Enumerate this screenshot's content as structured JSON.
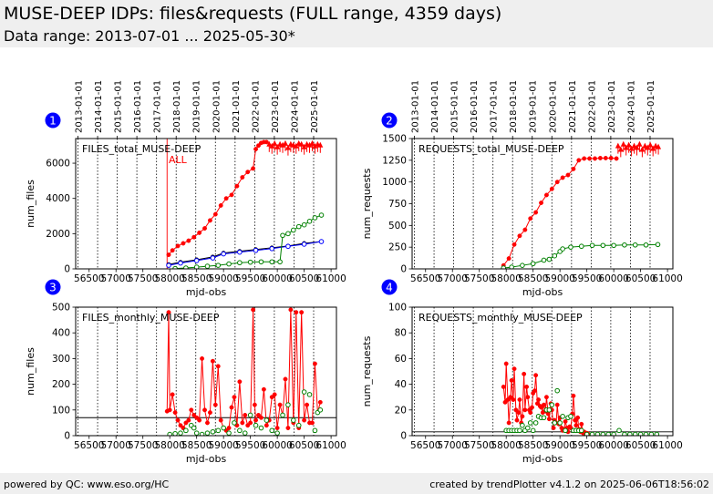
{
  "page": {
    "title": "MUSE-DEEP IDPs: files&requests (FULL range, 4359 days)",
    "subtitle": "Data range: 2013-07-01 ... 2025-05-30*",
    "footer_left": "powered by QC: www.eso.org/HC",
    "footer_right": "created by trendPlotter v4.1.2 on 2025-06-06T18:56:02"
  },
  "colors": {
    "red": "#ff0000",
    "green": "#008000",
    "blue": "#0000ff",
    "black": "#000000",
    "badge": "#0000ff"
  },
  "date_axis": {
    "labels": [
      "2013-01-01",
      "2014-01-01",
      "2015-01-01",
      "2016-01-01",
      "2017-01-01",
      "2018-01-01",
      "2019-01-01",
      "2020-01-01",
      "2021-01-01",
      "2022-01-01",
      "2023-01-01",
      "2024-01-01",
      "2025-01-01"
    ],
    "mjd": [
      56293,
      56658,
      57023,
      57388,
      57754,
      58119,
      58484,
      58849,
      59215,
      59580,
      59945,
      60310,
      60676
    ]
  },
  "chart_data": [
    {
      "id": 1,
      "type": "scatter",
      "title": "FILES_total_MUSE-DEEP",
      "annotation": "ALL",
      "xlabel": "mjd-obs",
      "ylabel": "num_files",
      "xlim": [
        56250,
        61100
      ],
      "ylim": [
        0,
        7400
      ],
      "xticks": [
        56500,
        57000,
        57500,
        58000,
        58500,
        59000,
        59500,
        60000,
        60500,
        61000
      ],
      "yticks": [
        0,
        2000,
        4000,
        6000
      ],
      "vline_red": 57950,
      "series": [
        {
          "color": "red",
          "marker": "filled",
          "line": true,
          "x": [
            57980,
            58050,
            58150,
            58250,
            58350,
            58450,
            58550,
            58650,
            58750,
            58850,
            58950,
            59050,
            59150,
            59250,
            59350,
            59450,
            59550,
            59600,
            59650,
            59700,
            59750,
            59800
          ],
          "y": [
            800,
            1050,
            1300,
            1450,
            1600,
            1800,
            2050,
            2300,
            2750,
            3100,
            3600,
            4000,
            4200,
            4700,
            5200,
            5500,
            5700,
            6800,
            7000,
            7150,
            7200,
            7200
          ]
        },
        {
          "color": "red",
          "marker": "triangle",
          "line": false,
          "x": [
            59850,
            59900,
            59950,
            60000,
            60050,
            60100,
            60150,
            60200,
            60250,
            60300,
            60350,
            60400,
            60450,
            60500,
            60550,
            60600,
            60650,
            60700,
            60750,
            60800
          ],
          "y": [
            7100,
            7000,
            7150,
            6950,
            7100,
            7050,
            7150,
            6900,
            7100,
            7050,
            7000,
            7150,
            7100,
            6950,
            7100,
            7050,
            7150,
            7000,
            7100,
            7050
          ]
        },
        {
          "color": "black",
          "marker": "filled",
          "line": true,
          "x": [
            57980,
            58200,
            58500,
            58800,
            59000,
            59300,
            59600,
            59900,
            60200,
            60500,
            60820
          ],
          "y": [
            250,
            380,
            520,
            680,
            900,
            1000,
            1100,
            1200,
            1300,
            1450,
            1550
          ]
        },
        {
          "color": "blue",
          "marker": "open",
          "line": true,
          "x": [
            57980,
            58200,
            58500,
            58800,
            59000,
            59300,
            59600,
            59900,
            60200,
            60500,
            60820
          ],
          "y": [
            200,
            330,
            470,
            620,
            850,
            950,
            1050,
            1150,
            1280,
            1400,
            1550
          ]
        },
        {
          "color": "green",
          "marker": "open",
          "line": true,
          "x": [
            58100,
            58300,
            58500,
            58700,
            58900,
            59100,
            59300,
            59500,
            59700,
            59900,
            60050,
            60100,
            60200,
            60300,
            60400,
            60500,
            60600,
            60700,
            60820
          ],
          "y": [
            20,
            50,
            100,
            150,
            200,
            280,
            350,
            380,
            400,
            400,
            400,
            1900,
            2000,
            2200,
            2400,
            2500,
            2700,
            2900,
            3050
          ]
        }
      ]
    },
    {
      "id": 2,
      "type": "scatter",
      "title": "REQUESTS_total_MUSE-DEEP",
      "annotation": "",
      "xlabel": "mjd-obs",
      "ylabel": "num_requests",
      "xlim": [
        56250,
        61100
      ],
      "ylim": [
        0,
        1500
      ],
      "xticks": [
        56500,
        57000,
        57500,
        58000,
        58500,
        59000,
        59500,
        60000,
        60500,
        61000
      ],
      "yticks": [
        0,
        250,
        500,
        750,
        1000,
        1250,
        1500
      ],
      "series": [
        {
          "color": "red",
          "marker": "filled",
          "line": true,
          "x": [
            57950,
            58050,
            58150,
            58250,
            58350,
            58450,
            58550,
            58650,
            58750,
            58850,
            58950,
            59050,
            59150,
            59250,
            59350,
            59450,
            59550,
            59650,
            59750,
            59850,
            59950,
            60050
          ],
          "y": [
            40,
            120,
            280,
            380,
            450,
            580,
            650,
            760,
            850,
            920,
            1000,
            1050,
            1080,
            1150,
            1250,
            1270,
            1270,
            1270,
            1275,
            1275,
            1275,
            1270
          ]
        },
        {
          "color": "red",
          "marker": "triangle",
          "line": false,
          "x": [
            60080,
            60130,
            60180,
            60230,
            60280,
            60330,
            60380,
            60430,
            60480,
            60530,
            60580,
            60630,
            60680,
            60730,
            60780,
            60830
          ],
          "y": [
            1420,
            1380,
            1440,
            1400,
            1430,
            1390,
            1420,
            1400,
            1440,
            1380,
            1420,
            1400,
            1430,
            1390,
            1420,
            1410
          ]
        },
        {
          "color": "green",
          "marker": "open",
          "line": true,
          "x": [
            57950,
            58100,
            58300,
            58500,
            58700,
            58800,
            58900,
            59000,
            59050,
            59200,
            59400,
            59600,
            59800,
            60000,
            60200,
            60400,
            60600,
            60820
          ],
          "y": [
            10,
            20,
            40,
            60,
            100,
            110,
            150,
            200,
            230,
            250,
            260,
            270,
            270,
            270,
            275,
            275,
            275,
            280
          ]
        }
      ]
    },
    {
      "id": 3,
      "type": "scatter",
      "title": "FILES_monthly_MUSE-DEEP",
      "annotation": "",
      "xlabel": "mjd-obs",
      "ylabel": "num_files",
      "xlim": [
        56250,
        61100
      ],
      "ylim": [
        0,
        500
      ],
      "xticks": [
        56500,
        57000,
        57500,
        58000,
        58500,
        59000,
        59500,
        60000,
        60500,
        61000
      ],
      "yticks": [
        0,
        100,
        200,
        300,
        400,
        500
      ],
      "hline": 70,
      "series": [
        {
          "color": "red",
          "marker": "filled",
          "line": true,
          "x": [
            57950,
            57980,
            58000,
            58050,
            58100,
            58150,
            58200,
            58250,
            58300,
            58350,
            58400,
            58450,
            58500,
            58550,
            58600,
            58650,
            58700,
            58750,
            58800,
            58850,
            58900,
            58950,
            59000,
            59050,
            59100,
            59150,
            59200,
            59250,
            59300,
            59350,
            59400,
            59450,
            59500,
            59550,
            59580,
            59600,
            59650,
            59700,
            59750,
            59800,
            59850,
            59900,
            59950,
            60000,
            60050,
            60100,
            60150,
            60200,
            60250,
            60300,
            60350,
            60400,
            60450,
            60500,
            60550,
            60600,
            60650,
            60700,
            60750,
            60800
          ],
          "y": [
            95,
            480,
            100,
            160,
            90,
            60,
            40,
            30,
            50,
            60,
            100,
            80,
            70,
            60,
            300,
            100,
            50,
            90,
            290,
            120,
            270,
            60,
            30,
            20,
            30,
            110,
            150,
            40,
            210,
            50,
            80,
            40,
            50,
            490,
            120,
            60,
            80,
            70,
            180,
            40,
            60,
            150,
            160,
            30,
            120,
            80,
            220,
            30,
            490,
            50,
            480,
            30,
            480,
            60,
            120,
            50,
            50,
            280,
            90,
            130
          ]
        },
        {
          "color": "green",
          "marker": "open",
          "line": false,
          "x": [
            58000,
            58100,
            58200,
            58300,
            58400,
            58450,
            58500,
            58600,
            58700,
            58800,
            58900,
            59000,
            59100,
            59200,
            59300,
            59400,
            59500,
            59600,
            59700,
            59800,
            59900,
            60000,
            60100,
            60200,
            60300,
            60400,
            60500,
            60600,
            60700,
            60750,
            60800
          ],
          "y": [
            5,
            8,
            10,
            20,
            40,
            30,
            10,
            5,
            10,
            15,
            20,
            30,
            10,
            50,
            20,
            10,
            80,
            40,
            30,
            60,
            20,
            10,
            80,
            120,
            60,
            40,
            170,
            160,
            20,
            90,
            100
          ]
        }
      ]
    },
    {
      "id": 4,
      "type": "scatter",
      "title": "REQUESTS_monthly_MUSE-DEEP",
      "annotation": "",
      "xlabel": "mjd-obs",
      "ylabel": "num_requests",
      "xlim": [
        56250,
        61100
      ],
      "ylim": [
        0,
        100
      ],
      "xticks": [
        56500,
        57000,
        57500,
        58000,
        58500,
        59000,
        59500,
        60000,
        60500,
        61000
      ],
      "yticks": [
        0,
        20,
        40,
        60,
        80,
        100
      ],
      "hline": 3,
      "series": [
        {
          "color": "red",
          "marker": "filled",
          "line": true,
          "x": [
            57950,
            57980,
            58000,
            58030,
            58050,
            58080,
            58100,
            58130,
            58150,
            58180,
            58200,
            58230,
            58250,
            58280,
            58300,
            58330,
            58350,
            58380,
            58400,
            58430,
            58450,
            58480,
            58500,
            58530,
            58550,
            58580,
            58600,
            58630,
            58650,
            58680,
            58700,
            58730,
            58750,
            58780,
            58800,
            58830,
            58850,
            58880,
            58900,
            58930,
            58950,
            58980,
            59000,
            59030,
            59050,
            59080,
            59100,
            59130,
            59150,
            59180,
            59200,
            59230,
            59250,
            59280,
            59300,
            59330,
            59350,
            59380,
            59400,
            59430,
            59450,
            59480,
            59500,
            59530
          ],
          "y": [
            38,
            26,
            56,
            28,
            10,
            30,
            43,
            28,
            52,
            20,
            12,
            18,
            28,
            10,
            15,
            48,
            20,
            38,
            30,
            20,
            18,
            22,
            33,
            35,
            47,
            25,
            28,
            23,
            22,
            18,
            24,
            19,
            30,
            17,
            13,
            25,
            20,
            6,
            12,
            10,
            24,
            9,
            14,
            6,
            4,
            5,
            11,
            6,
            3,
            7,
            6,
            17,
            31,
            12,
            8,
            14,
            5,
            3,
            9,
            2,
            3,
            1,
            2,
            1
          ]
        },
        {
          "color": "green",
          "marker": "open",
          "line": false,
          "x": [
            58000,
            58050,
            58100,
            58150,
            58200,
            58250,
            58300,
            58350,
            58400,
            58450,
            58500,
            58550,
            58600,
            58650,
            58700,
            58750,
            58800,
            58850,
            58900,
            58950,
            59000,
            59050,
            59100,
            59150,
            59200,
            59250,
            59300,
            59350,
            59400,
            59500,
            59600,
            59700,
            59800,
            59900,
            60000,
            60100,
            60200,
            60300,
            60400,
            60500,
            60600,
            60700,
            60800
          ],
          "y": [
            4,
            4,
            4,
            4,
            4,
            4,
            8,
            4,
            6,
            10,
            4,
            10,
            15,
            14,
            14,
            20,
            20,
            24,
            10,
            35,
            10,
            15,
            4,
            14,
            15,
            4,
            4,
            4,
            4,
            1,
            1,
            1,
            1,
            1,
            1,
            4,
            1,
            1,
            1,
            1,
            1,
            1,
            1
          ]
        }
      ]
    }
  ]
}
